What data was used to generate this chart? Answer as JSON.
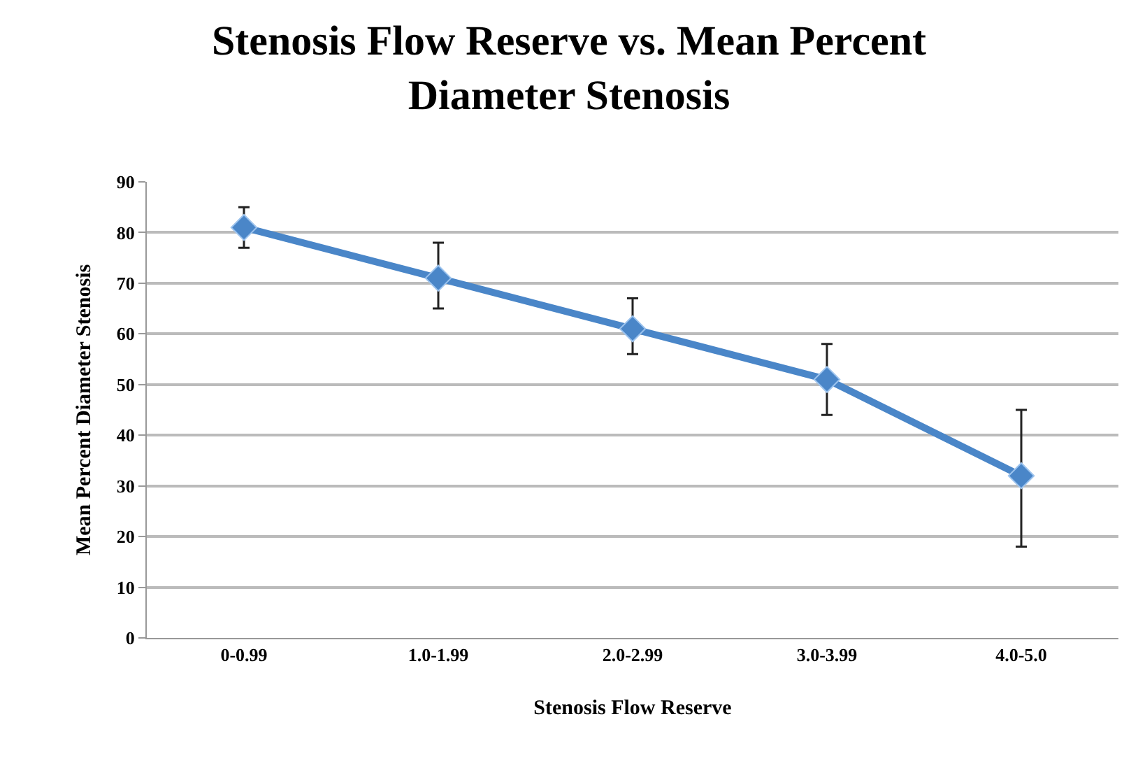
{
  "chart_data": {
    "type": "line",
    "title": "Stenosis Flow Reserve vs. Mean Percent Diameter Stenosis",
    "xlabel": "Stenosis Flow Reserve",
    "ylabel": "Mean Percent Diameter Stenosis",
    "categories": [
      "0-0.99",
      "1.0-1.99",
      "2.0-2.99",
      "3.0-3.99",
      "4.0-5.0"
    ],
    "series": [
      {
        "color": "#4a86c8",
        "values": [
          81,
          71,
          61,
          51,
          32
        ],
        "errors": [
          [
            77,
            85
          ],
          [
            65,
            78
          ],
          [
            56,
            67
          ],
          [
            44,
            58
          ],
          [
            18,
            45
          ]
        ]
      }
    ],
    "ylim": [
      0,
      90
    ],
    "yticks": [
      0,
      10,
      20,
      30,
      40,
      50,
      60,
      70,
      80,
      90
    ],
    "grid": "y",
    "marker": "diamond",
    "line_style": "solid"
  }
}
